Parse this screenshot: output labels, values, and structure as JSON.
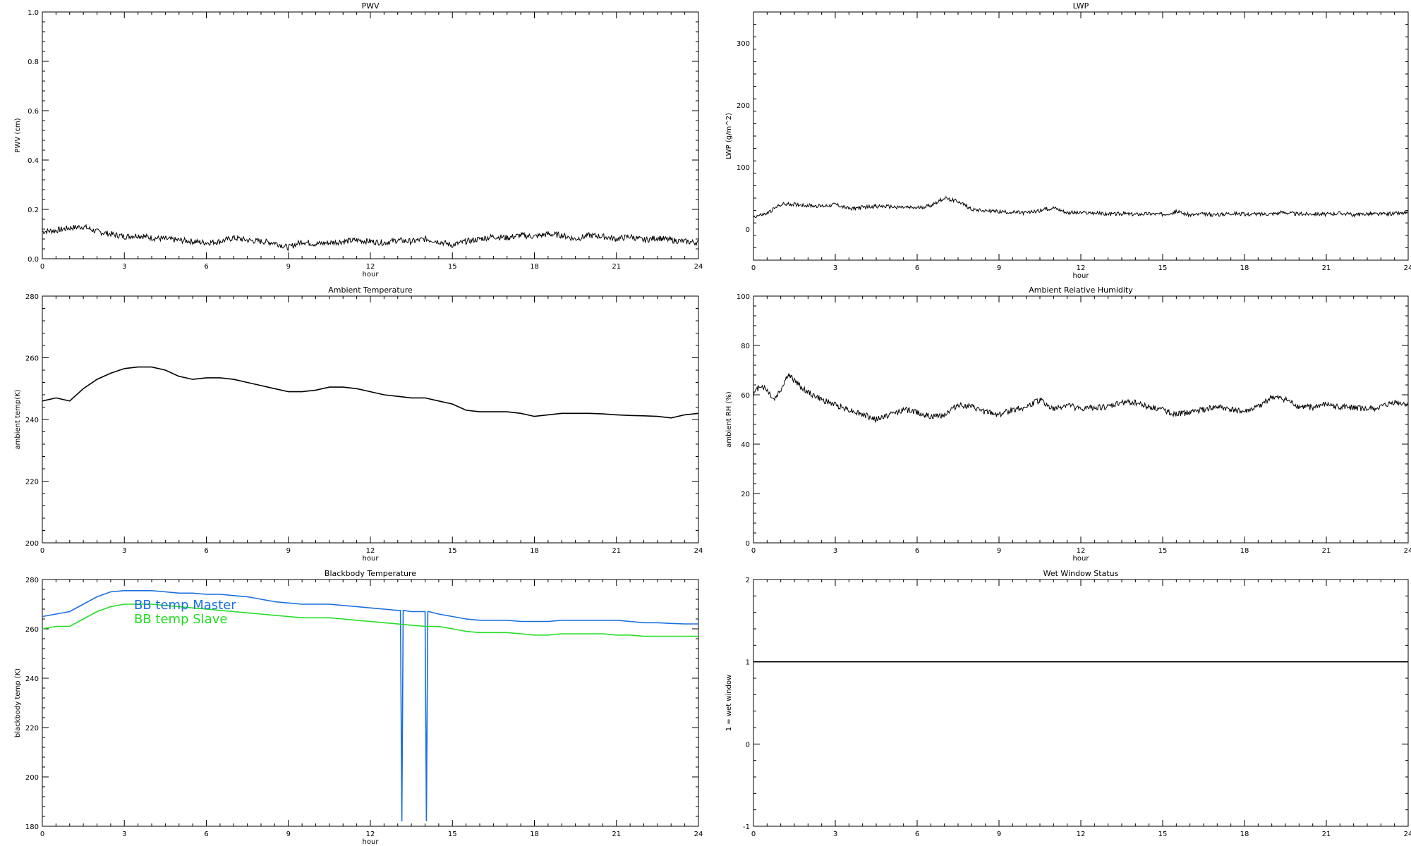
{
  "chart_data": [
    {
      "type": "line",
      "title": "PWV",
      "xlabel": "hour",
      "ylabel": "PWV (cm)",
      "xlim": [
        0,
        24
      ],
      "ylim": [
        0.0,
        1.0
      ],
      "xticks": [
        0,
        3,
        6,
        9,
        12,
        15,
        18,
        21,
        24
      ],
      "yticks": [
        0.0,
        0.2,
        0.4,
        0.6,
        0.8,
        1.0
      ],
      "ytick_labels": [
        "0.0",
        "0.2",
        "0.4",
        "0.6",
        "0.8",
        "1.0"
      ],
      "series": [
        {
          "color": "#000000",
          "x": [
            0,
            0.5,
            1.0,
            1.5,
            2.0,
            2.5,
            3.0,
            3.5,
            4.0,
            4.5,
            5.0,
            5.5,
            6.0,
            6.5,
            7.0,
            7.5,
            8.0,
            8.5,
            9.0,
            9.5,
            10.0,
            10.5,
            11.0,
            11.5,
            12.0,
            12.5,
            13.0,
            13.5,
            14.0,
            14.5,
            15.0,
            15.5,
            16.0,
            16.5,
            17.0,
            17.5,
            18.0,
            18.5,
            19.0,
            19.5,
            20.0,
            20.5,
            21.0,
            21.5,
            22.0,
            22.5,
            23.0,
            23.5,
            24.0
          ],
          "y": [
            0.11,
            0.115,
            0.125,
            0.13,
            0.11,
            0.1,
            0.09,
            0.095,
            0.085,
            0.08,
            0.075,
            0.07,
            0.065,
            0.07,
            0.085,
            0.075,
            0.07,
            0.065,
            0.045,
            0.07,
            0.06,
            0.065,
            0.07,
            0.075,
            0.07,
            0.065,
            0.075,
            0.07,
            0.08,
            0.07,
            0.055,
            0.07,
            0.08,
            0.09,
            0.085,
            0.095,
            0.09,
            0.1,
            0.095,
            0.08,
            0.095,
            0.09,
            0.08,
            0.09,
            0.075,
            0.085,
            0.075,
            0.07,
            0.065
          ],
          "noise": 0.012
        }
      ]
    },
    {
      "type": "line",
      "title": "LWP",
      "xlabel": "hour",
      "ylabel": "LWP (g/m^2)",
      "xlim": [
        0,
        24
      ],
      "ylim": [
        -50,
        350
      ],
      "xticks": [
        0,
        3,
        6,
        9,
        12,
        15,
        18,
        21,
        24
      ],
      "yticks": [
        0,
        100,
        200,
        300
      ],
      "ytick_labels": [
        "0",
        "100",
        "200",
        "300"
      ],
      "series": [
        {
          "color": "#000000",
          "x": [
            0,
            0.5,
            1.0,
            1.5,
            2.0,
            2.5,
            3.0,
            3.5,
            4.0,
            4.5,
            5.0,
            5.5,
            6.0,
            6.5,
            7.0,
            7.5,
            8.0,
            8.5,
            9.0,
            9.5,
            10.0,
            10.5,
            11.0,
            11.5,
            12.0,
            12.5,
            13.0,
            13.5,
            14.0,
            14.5,
            15.0,
            15.5,
            16.0,
            16.5,
            17.0,
            17.5,
            18.0,
            18.5,
            19.0,
            19.5,
            20.0,
            20.5,
            21.0,
            21.5,
            22.0,
            22.5,
            23.0,
            23.5,
            24.0
          ],
          "y": [
            20,
            25,
            40,
            40,
            38,
            37,
            40,
            33,
            35,
            37,
            36,
            35,
            34,
            38,
            50,
            45,
            32,
            30,
            28,
            27,
            26,
            30,
            35,
            27,
            26,
            26,
            24,
            25,
            24,
            25,
            24,
            28,
            23,
            24,
            23,
            26,
            24,
            24,
            25,
            27,
            24,
            25,
            24,
            26,
            23,
            25,
            24,
            25,
            26
          ],
          "noise": 3
        }
      ]
    },
    {
      "type": "line",
      "title": "Ambient Temperature",
      "xlabel": "hour",
      "ylabel": "ambient temp(K)",
      "xlim": [
        0,
        24
      ],
      "ylim": [
        200,
        280
      ],
      "xticks": [
        0,
        3,
        6,
        9,
        12,
        15,
        18,
        21,
        24
      ],
      "yticks": [
        200,
        220,
        240,
        260,
        280
      ],
      "ytick_labels": [
        "200",
        "220",
        "240",
        "260",
        "280"
      ],
      "series": [
        {
          "color": "#000000",
          "x": [
            0,
            0.5,
            1.0,
            1.5,
            2.0,
            2.5,
            3.0,
            3.5,
            4.0,
            4.5,
            5.0,
            5.5,
            6.0,
            6.5,
            7.0,
            7.5,
            8.0,
            8.5,
            9.0,
            9.5,
            10.0,
            10.5,
            11.0,
            11.5,
            12.0,
            12.5,
            13.0,
            13.5,
            14.0,
            14.5,
            15.0,
            15.5,
            16.0,
            16.5,
            17.0,
            17.5,
            18.0,
            18.5,
            19.0,
            19.5,
            20.0,
            20.5,
            21.0,
            21.5,
            22.0,
            22.5,
            23.0,
            23.5,
            24.0
          ],
          "y": [
            246,
            247,
            246,
            250,
            253,
            255,
            256.5,
            257,
            257,
            256,
            254,
            253,
            253.5,
            253.5,
            253,
            252,
            251,
            250,
            249,
            249,
            249.5,
            250.5,
            250.5,
            250,
            249,
            248,
            247.5,
            247,
            247,
            246,
            245,
            243,
            242.5,
            242.5,
            242.5,
            242,
            241,
            241.5,
            242,
            242,
            242,
            241.8,
            241.5,
            241.3,
            241.2,
            241,
            240.5,
            241.5,
            242
          ]
        }
      ]
    },
    {
      "type": "line",
      "title": "Ambient Relative Humidity",
      "xlabel": "hour",
      "ylabel": "ambient RH (%)",
      "xlim": [
        0,
        24
      ],
      "ylim": [
        0,
        100
      ],
      "xticks": [
        0,
        3,
        6,
        9,
        12,
        15,
        18,
        21,
        24
      ],
      "yticks": [
        0,
        20,
        40,
        60,
        80,
        100
      ],
      "ytick_labels": [
        "0",
        "20",
        "40",
        "60",
        "80",
        "100"
      ],
      "series": [
        {
          "color": "#000000",
          "x": [
            0,
            0.25,
            0.5,
            0.75,
            1.0,
            1.25,
            1.5,
            1.75,
            2.0,
            2.5,
            3.0,
            3.5,
            4.0,
            4.5,
            5.0,
            5.5,
            6.0,
            6.5,
            7.0,
            7.5,
            8.0,
            8.5,
            9.0,
            9.5,
            10.0,
            10.5,
            11.0,
            11.5,
            12.0,
            12.5,
            13.0,
            13.5,
            14.0,
            14.5,
            15.0,
            15.5,
            16.0,
            16.5,
            17.0,
            17.5,
            18.0,
            18.5,
            19.0,
            19.5,
            20.0,
            20.5,
            21.0,
            21.5,
            22.0,
            22.5,
            23.0,
            23.5,
            24.0
          ],
          "y": [
            60,
            64,
            62,
            58,
            62,
            68,
            66,
            63,
            61,
            58,
            56,
            54,
            52,
            50,
            52,
            54,
            53,
            51,
            52,
            56,
            55,
            53,
            52,
            54,
            55,
            58,
            54,
            56,
            54,
            55,
            55,
            57,
            57,
            55,
            54,
            52,
            53,
            54,
            55,
            54,
            53,
            55,
            59,
            58,
            55,
            55,
            56,
            55,
            55,
            54,
            55,
            57,
            56
          ],
          "noise": 1.2
        }
      ]
    },
    {
      "type": "line",
      "title": "Blackbody Temperature",
      "xlabel": "hour",
      "ylabel": "blackbody temp (K)",
      "xlim": [
        0,
        24
      ],
      "ylim": [
        180,
        280
      ],
      "xticks": [
        0,
        3,
        6,
        9,
        12,
        15,
        18,
        21,
        24
      ],
      "yticks": [
        180,
        200,
        220,
        240,
        260,
        280
      ],
      "ytick_labels": [
        "180",
        "200",
        "220",
        "240",
        "260",
        "280"
      ],
      "legend_placement": "top-left",
      "series": [
        {
          "name": "BB temp Master",
          "color": "#1a6fe0",
          "x": [
            0,
            0.5,
            1.0,
            1.5,
            2.0,
            2.5,
            3.0,
            3.5,
            4.0,
            4.5,
            5.0,
            5.5,
            6.0,
            6.5,
            7.0,
            7.5,
            8.0,
            8.5,
            9.0,
            9.5,
            10.0,
            10.5,
            11.0,
            11.5,
            12.0,
            12.5,
            13.0,
            13.1,
            13.15,
            13.2,
            13.5,
            14.0,
            14.05,
            14.1,
            14.15,
            14.5,
            15.0,
            15.5,
            16.0,
            16.5,
            17.0,
            17.5,
            18.0,
            18.5,
            19.0,
            19.5,
            20.0,
            20.5,
            21.0,
            21.5,
            22.0,
            22.5,
            23.0,
            23.5,
            24.0
          ],
          "y": [
            265,
            266,
            267,
            270,
            273,
            275,
            275.5,
            275.5,
            275.5,
            275,
            274.5,
            274.5,
            274,
            274,
            273.5,
            273,
            272,
            271,
            270.5,
            270,
            270,
            270,
            269.5,
            269,
            268.5,
            268,
            267.5,
            267.5,
            182,
            267.5,
            267,
            267,
            182,
            267,
            267,
            266,
            265,
            264,
            263.5,
            263.5,
            263.5,
            263,
            263,
            263,
            263.5,
            263.5,
            263.5,
            263.5,
            263.5,
            263,
            262.5,
            262.5,
            262.2,
            262,
            262
          ]
        },
        {
          "name": "BB temp Slave",
          "color": "#22dd22",
          "x": [
            0,
            0.5,
            1.0,
            1.5,
            2.0,
            2.5,
            3.0,
            3.5,
            4.0,
            4.5,
            5.0,
            5.5,
            6.0,
            6.5,
            7.0,
            7.5,
            8.0,
            8.5,
            9.0,
            9.5,
            10.0,
            10.5,
            11.0,
            11.5,
            12.0,
            12.5,
            13.0,
            13.5,
            14.0,
            14.5,
            15.0,
            15.5,
            16.0,
            16.5,
            17.0,
            17.5,
            18.0,
            18.5,
            19.0,
            19.5,
            20.0,
            20.5,
            21.0,
            21.5,
            22.0,
            22.5,
            23.0,
            23.5,
            24.0
          ],
          "y": [
            260,
            261,
            261,
            264,
            267,
            269,
            270,
            270,
            270,
            269.5,
            269,
            268.5,
            268,
            267.5,
            267,
            266.5,
            266,
            265.5,
            265,
            264.5,
            264.5,
            264.5,
            264,
            263.5,
            263,
            262.5,
            262,
            261.5,
            261,
            261,
            260,
            259,
            258.5,
            258.5,
            258.5,
            258,
            257.5,
            257.5,
            258,
            258,
            258,
            258,
            257.5,
            257.5,
            257,
            257,
            257,
            257,
            257
          ]
        }
      ]
    },
    {
      "type": "line",
      "title": "Wet Window Status",
      "xlabel": "",
      "ylabel": "1 = wet window",
      "xlim": [
        0,
        24
      ],
      "ylim": [
        -1,
        2
      ],
      "xticks": [
        0,
        3,
        6,
        9,
        12,
        15,
        18,
        21,
        24
      ],
      "yticks": [
        -1,
        0,
        1,
        2
      ],
      "ytick_labels": [
        "-1",
        "0",
        "1",
        "2"
      ],
      "series": [
        {
          "color": "#000000",
          "x": [
            0,
            24
          ],
          "y": [
            1,
            1
          ]
        }
      ]
    }
  ]
}
